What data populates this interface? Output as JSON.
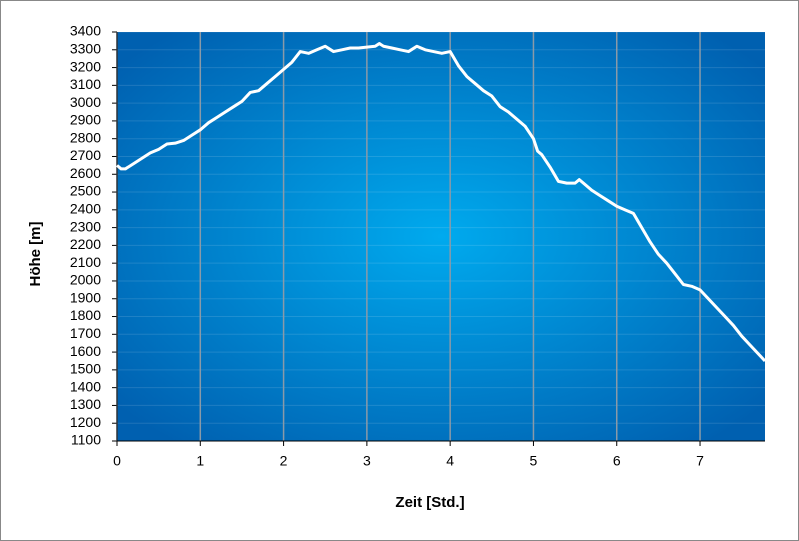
{
  "chart_data": {
    "type": "line",
    "x_label": "Zeit [Std.]",
    "y_label": "Höhe [m]",
    "x": [
      0,
      0.05,
      0.1,
      0.2,
      0.3,
      0.4,
      0.5,
      0.6,
      0.7,
      0.8,
      0.9,
      1.0,
      1.1,
      1.2,
      1.3,
      1.4,
      1.5,
      1.6,
      1.7,
      1.8,
      1.9,
      2.0,
      2.1,
      2.2,
      2.3,
      2.4,
      2.5,
      2.6,
      2.7,
      2.8,
      2.9,
      3.0,
      3.1,
      3.15,
      3.2,
      3.3,
      3.4,
      3.5,
      3.6,
      3.7,
      3.8,
      3.9,
      4.0,
      4.1,
      4.2,
      4.3,
      4.4,
      4.5,
      4.6,
      4.7,
      4.8,
      4.9,
      5.0,
      5.05,
      5.1,
      5.2,
      5.3,
      5.4,
      5.5,
      5.55,
      5.6,
      5.7,
      5.8,
      5.9,
      6.0,
      6.1,
      6.2,
      6.3,
      6.4,
      6.5,
      6.6,
      6.7,
      6.8,
      6.9,
      7.0,
      7.1,
      7.2,
      7.3,
      7.4,
      7.5,
      7.6,
      7.7,
      7.78
    ],
    "values": [
      2650,
      2630,
      2630,
      2660,
      2690,
      2720,
      2740,
      2770,
      2775,
      2790,
      2820,
      2850,
      2890,
      2920,
      2950,
      2980,
      3010,
      3060,
      3070,
      3110,
      3150,
      3190,
      3230,
      3290,
      3280,
      3300,
      3320,
      3290,
      3300,
      3310,
      3310,
      3315,
      3320,
      3335,
      3320,
      3310,
      3300,
      3290,
      3320,
      3300,
      3290,
      3280,
      3290,
      3210,
      3150,
      3110,
      3070,
      3040,
      2980,
      2950,
      2910,
      2870,
      2800,
      2730,
      2710,
      2640,
      2560,
      2550,
      2550,
      2570,
      2550,
      2510,
      2480,
      2450,
      2420,
      2400,
      2380,
      2300,
      2220,
      2150,
      2100,
      2040,
      1980,
      1970,
      1950,
      1900,
      1850,
      1800,
      1750,
      1690,
      1640,
      1590,
      1550
    ],
    "color": "#ffffff",
    "xlim": [
      0,
      7.78
    ],
    "xticks": [
      0,
      1,
      2,
      3,
      4,
      5,
      6,
      7
    ],
    "ylim": [
      1100,
      3400
    ],
    "yticks": [
      1100,
      1200,
      1300,
      1400,
      1500,
      1600,
      1700,
      1800,
      1900,
      2000,
      2100,
      2200,
      2300,
      2400,
      2500,
      2600,
      2700,
      2800,
      2900,
      3000,
      3100,
      3200,
      3300,
      3400
    ],
    "grid": true
  }
}
